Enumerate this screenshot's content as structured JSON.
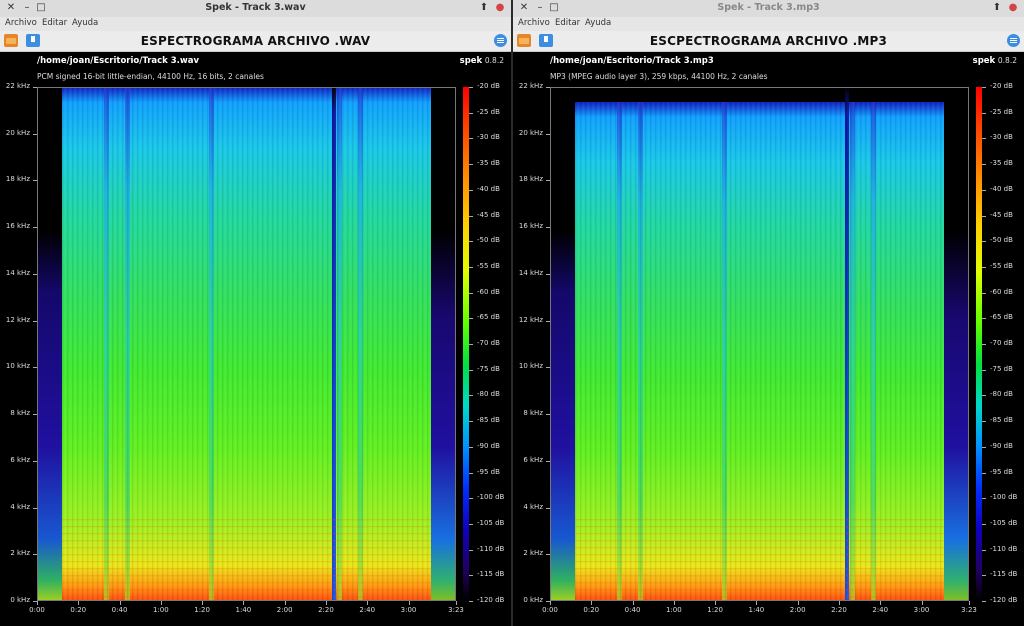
{
  "windows": [
    {
      "id": "left",
      "title": "Spek - Track 3.wav",
      "menu": [
        "Archivo",
        "Editar",
        "Ayuda"
      ],
      "heading": "ESPECTROGRAMA ARCHIVO .WAV",
      "file_path": "/home/joan/Escritorio/Track 3.wav",
      "file_info": "PCM signed 16-bit little-endian, 44100 Hz, 16 bits, 2 canales",
      "brand_name": "spek",
      "brand_version": "0.8.2",
      "spectrum": {
        "active_start": 0.06,
        "active_end": 0.94,
        "cutoff_top_fraction": 1.0,
        "dark_bands": [
          0.16,
          0.21,
          0.41,
          0.715,
          0.765
        ]
      }
    },
    {
      "id": "right",
      "title": "Spek - Track 3.mp3",
      "menu": [
        "Archivo",
        "Editar",
        "Ayuda"
      ],
      "heading": "ESCPECTROGRAMA ARCHIVO .MP3",
      "file_path": "/home/joan/Escritorio/Track 3.mp3",
      "file_info": "MP3 (MPEG audio layer 3), 259 kbps, 44100 Hz, 2 canales",
      "brand_name": "spek",
      "brand_version": "0.8.2",
      "spectrum": {
        "active_start": 0.06,
        "active_end": 0.94,
        "cutoff_top_fraction": 0.97,
        "dark_bands": [
          0.16,
          0.21,
          0.41,
          0.715,
          0.765
        ]
      }
    }
  ],
  "axes": {
    "freq_labels": [
      "22 kHz",
      "20 kHz",
      "18 kHz",
      "16 kHz",
      "14 kHz",
      "12 kHz",
      "10 kHz",
      "8 kHz",
      "6 kHz",
      "4 kHz",
      "2 kHz",
      "0 kHz"
    ],
    "freq_values": [
      22,
      20,
      18,
      16,
      14,
      12,
      10,
      8,
      6,
      4,
      2,
      0
    ],
    "freq_max": 22,
    "time_labels": [
      "0:00",
      "0:20",
      "0:40",
      "1:00",
      "1:20",
      "1:40",
      "2:00",
      "2:20",
      "2:40",
      "3:00",
      "3:23"
    ],
    "time_values": [
      0,
      20,
      40,
      60,
      80,
      100,
      120,
      140,
      160,
      180,
      203
    ],
    "time_max": 203,
    "db_labels": [
      "-20 dB",
      "-25 dB",
      "-30 dB",
      "-35 dB",
      "-40 dB",
      "-45 dB",
      "-50 dB",
      "-55 dB",
      "-60 dB",
      "-65 dB",
      "-70 dB",
      "-75 dB",
      "-80 dB",
      "-85 dB",
      "-90 dB",
      "-95 dB",
      "-100 dB",
      "-105 dB",
      "-110 dB",
      "-115 dB",
      "-120 dB"
    ],
    "db_values": [
      -20,
      -25,
      -30,
      -35,
      -40,
      -45,
      -50,
      -55,
      -60,
      -65,
      -70,
      -75,
      -80,
      -85,
      -90,
      -95,
      -100,
      -105,
      -110,
      -115,
      -120
    ]
  }
}
